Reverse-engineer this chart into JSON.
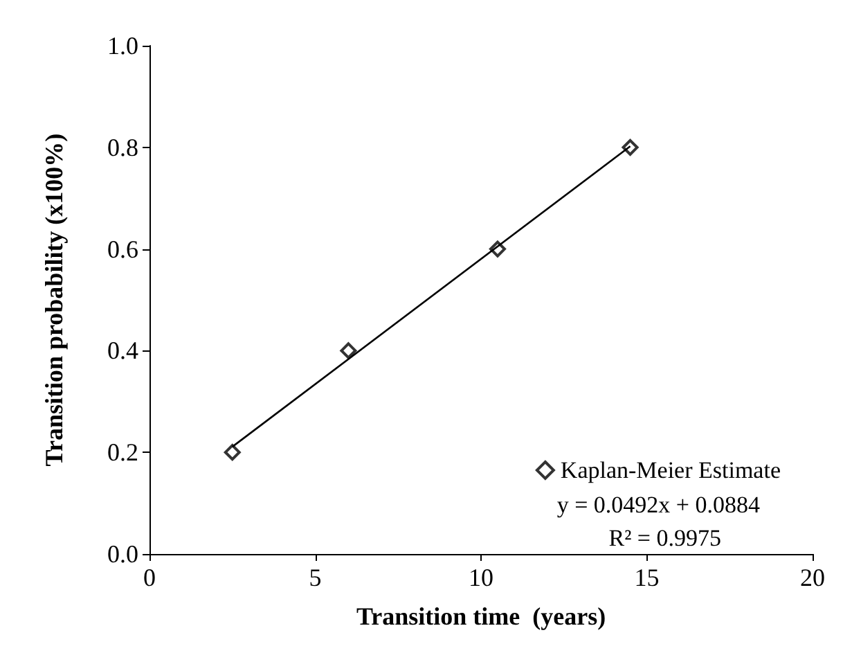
{
  "chart_data": {
    "type": "scatter",
    "xlabel": "Transition time  (years)",
    "ylabel": "Transition probability (x100%)",
    "x": [
      2.5,
      6,
      10.5,
      14.5
    ],
    "series": [
      {
        "name": "Kaplan-Meier Estimate",
        "color": "#000000",
        "values": [
          0.2,
          0.4,
          0.6,
          0.8
        ]
      },
      {
        "type": "line",
        "color": "#000000",
        "marker": "none",
        "x": [
          2.5,
          14.5
        ],
        "values": [
          0.211,
          0.802
        ]
      }
    ],
    "xlim": [
      0,
      20
    ],
    "xticks": [
      0,
      5,
      10,
      15,
      20
    ],
    "ylim": [
      0,
      1
    ],
    "yticks": [
      {
        "value": 0,
        "label": "0.0"
      },
      0.2,
      0.4,
      0.6,
      0.8,
      {
        "value": 1,
        "label": "1.0"
      }
    ],
    "annotations": [
      "y = 0.0492x + 0.0884",
      "R² = 0.9975"
    ],
    "grid": false,
    "legend": "bottom right",
    "marker": "diamond"
  }
}
